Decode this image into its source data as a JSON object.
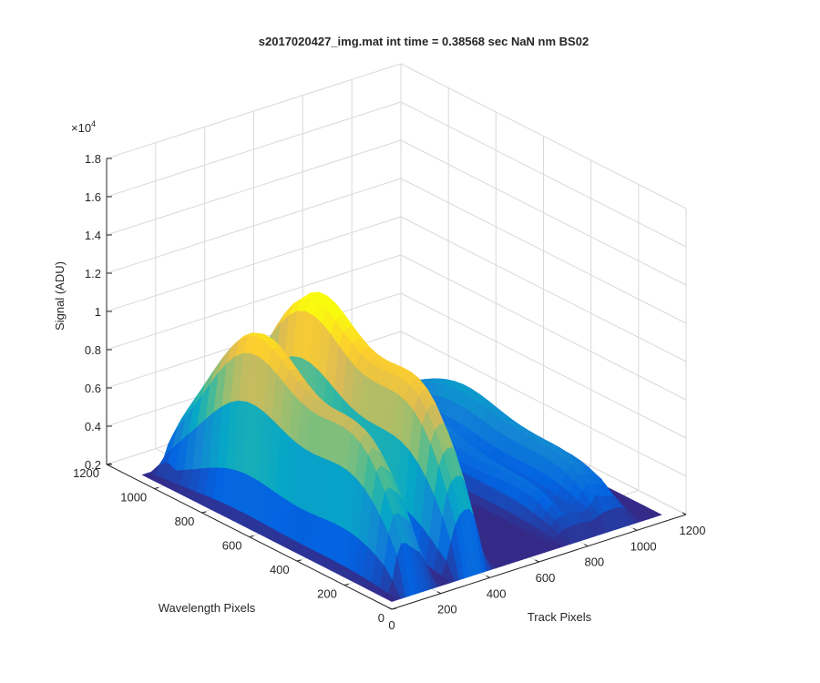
{
  "chart_data": {
    "type": "surface",
    "title": "s2017020427_img.mat int time = 0.38568 sec  NaN nm BS02",
    "xlabel": "Track Pixels",
    "ylabel": "Wavelength Pixels",
    "zlabel": "Signal (ADU)",
    "z_exponent_label": "×10",
    "z_exponent_power": "4",
    "xlim": [
      0,
      1200
    ],
    "ylim": [
      0,
      1200
    ],
    "zlim": [
      0.2,
      1.8
    ],
    "z_multiplier": 10000,
    "x_ticks": [
      "0",
      "200",
      "400",
      "600",
      "800",
      "1000",
      "1200"
    ],
    "y_ticks": [
      "0",
      "200",
      "400",
      "600",
      "800",
      "1000",
      "1200"
    ],
    "z_ticks": [
      "0.2",
      "0.4",
      "0.6",
      "0.8",
      "1",
      "1.2",
      "1.4",
      "1.6",
      "1.8"
    ],
    "grid": true,
    "colormap": [
      "#352a87",
      "#0363e1",
      "#1485d4",
      "#06a7c6",
      "#38b99e",
      "#92bf73",
      "#d9ba56",
      "#fcce2e",
      "#f9fb0e"
    ],
    "description_peaks": [
      {
        "track_center": 110,
        "peak_signal": 1.13
      },
      {
        "track_center": 330,
        "peak_signal": 1.25
      },
      {
        "track_center": 780,
        "peak_signal": 0.45
      },
      {
        "track_center": 930,
        "peak_signal": 0.52
      }
    ]
  }
}
